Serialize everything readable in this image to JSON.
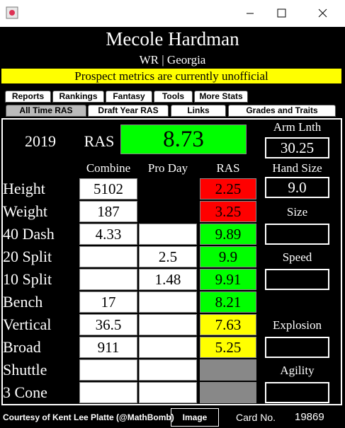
{
  "header": {
    "name": "Mecole Hardman",
    "subtitle": "WR | Georgia",
    "banner": "Prospect metrics are currently unofficial"
  },
  "tabs_row1": [
    "Reports",
    "Rankings",
    "Fantasy",
    "Tools",
    "More Stats"
  ],
  "tabs_row2": [
    "All Time RAS",
    "Draft Year RAS",
    "Links",
    "Grades and Traits"
  ],
  "summary": {
    "year": "2019",
    "ras_label": "RAS",
    "ras_score": "8.73",
    "ras_color": "#00ff00"
  },
  "columns": [
    "Combine",
    "Pro Day",
    "RAS"
  ],
  "rows": [
    {
      "label": "Height",
      "combine": "5102",
      "pro_day": null,
      "ras": "2.25",
      "color": "#ff0000"
    },
    {
      "label": "Weight",
      "combine": "187",
      "pro_day": null,
      "ras": "3.25",
      "color": "#ff0000"
    },
    {
      "label": "40 Dash",
      "combine": "4.33",
      "pro_day": null,
      "ras": "9.89",
      "color": "#00ff00"
    },
    {
      "label": "20 Split",
      "combine": null,
      "pro_day": "2.5",
      "ras": "9.9",
      "color": "#00ff00"
    },
    {
      "label": "10 Split",
      "combine": null,
      "pro_day": "1.48",
      "ras": "9.91",
      "color": "#00ff00"
    },
    {
      "label": "Bench",
      "combine": "17",
      "pro_day": null,
      "ras": "8.21",
      "color": "#00ff00"
    },
    {
      "label": "Vertical",
      "combine": "36.5",
      "pro_day": null,
      "ras": "7.63",
      "color": "#ffff00"
    },
    {
      "label": "Broad",
      "combine": "911",
      "pro_day": null,
      "ras": "5.25",
      "color": "#ffff00"
    },
    {
      "label": "Shuttle",
      "combine": null,
      "pro_day": null,
      "ras": null,
      "color": "#888888"
    },
    {
      "label": "3 Cone",
      "combine": null,
      "pro_day": null,
      "ras": null,
      "color": "#888888"
    }
  ],
  "side": [
    {
      "label": "Arm Lnth",
      "value": "30.25"
    },
    {
      "label": "Hand Size",
      "value": "9.0"
    },
    {
      "label": "Size",
      "value": null
    },
    {
      "label": "Speed",
      "value": null
    },
    {
      "label": "Explosion",
      "value": null
    },
    {
      "label": "Agility",
      "value": null
    }
  ],
  "footer": {
    "credit": "Courtesy of Kent Lee Platte (@MathBomb)",
    "button": "Image",
    "card_label": "Card No.",
    "card_number": "19869"
  }
}
